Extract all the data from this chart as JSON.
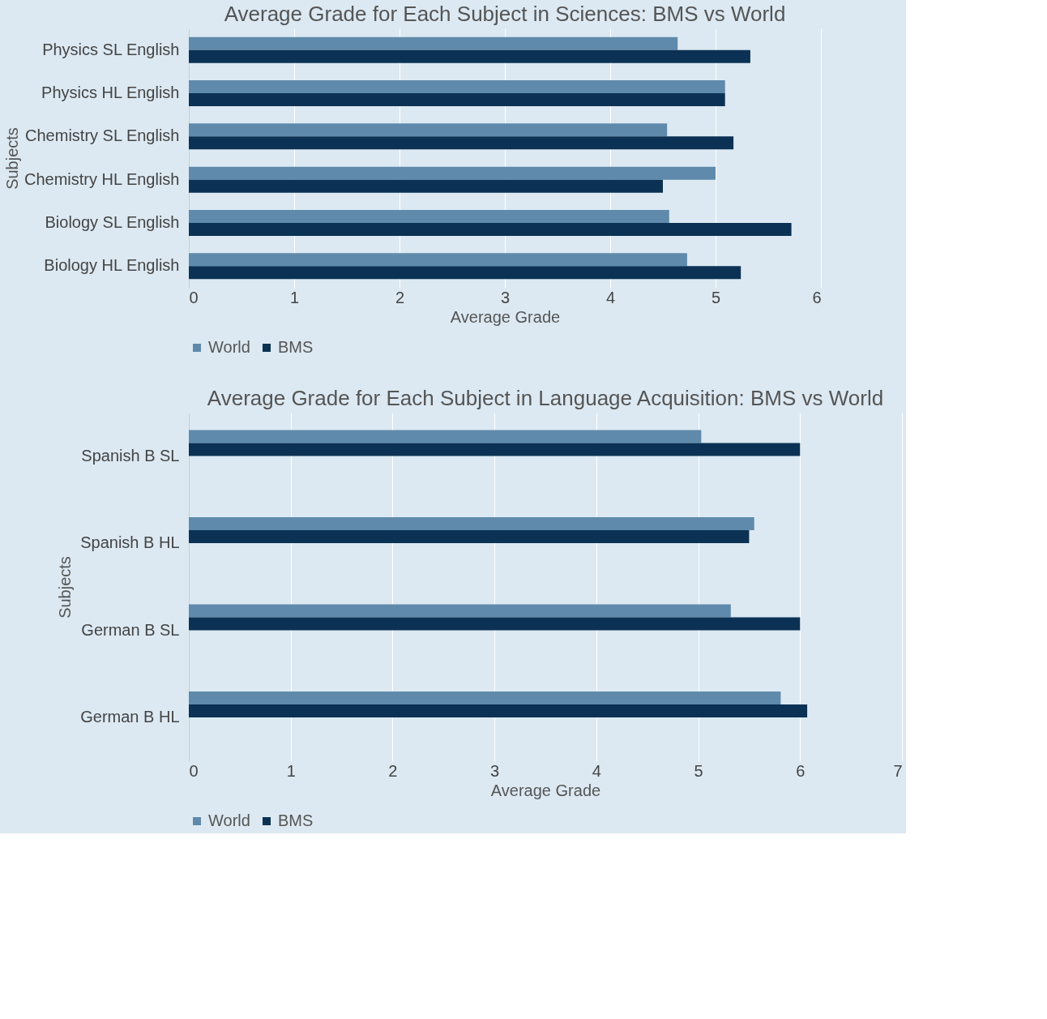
{
  "chart_data": [
    {
      "type": "bar",
      "orientation": "horizontal",
      "title": "Average Grade for Each Subject in Sciences: BMS vs World",
      "xlabel": "Average Grade",
      "ylabel": "Subjects",
      "categories": [
        "Physics SL English",
        "Physics HL English",
        "Chemistry SL English",
        "Chemistry HL English",
        "Biology SL English",
        "Biology HL English"
      ],
      "series": [
        {
          "name": "World",
          "color": "#5f8aab",
          "values": [
            4.64,
            5.09,
            4.54,
            5.0,
            4.56,
            4.73
          ]
        },
        {
          "name": "BMS",
          "color": "#0b3254",
          "values": [
            5.33,
            5.09,
            5.17,
            4.5,
            5.72,
            5.24
          ]
        }
      ],
      "xlim": [
        0,
        6
      ],
      "xticks": [
        0,
        1,
        2,
        3,
        4,
        5,
        6
      ],
      "grid": "x",
      "legend": "bottom"
    },
    {
      "type": "bar",
      "orientation": "horizontal",
      "title": "Average Grade for Each Subject in Language Acquisition: BMS vs World",
      "xlabel": "Average Grade",
      "ylabel": "Subjects",
      "categories": [
        "Spanish B SL",
        "Spanish B HL",
        "German B SL",
        "German B HL"
      ],
      "series": [
        {
          "name": "World",
          "color": "#5f8aab",
          "values": [
            5.03,
            5.55,
            5.32,
            5.81
          ]
        },
        {
          "name": "BMS",
          "color": "#0b3254",
          "values": [
            6.0,
            5.5,
            6.0,
            6.07
          ]
        }
      ],
      "xlim": [
        0,
        7
      ],
      "xticks": [
        0,
        1,
        2,
        3,
        4,
        5,
        6,
        7
      ],
      "grid": "x",
      "legend": "bottom"
    }
  ]
}
